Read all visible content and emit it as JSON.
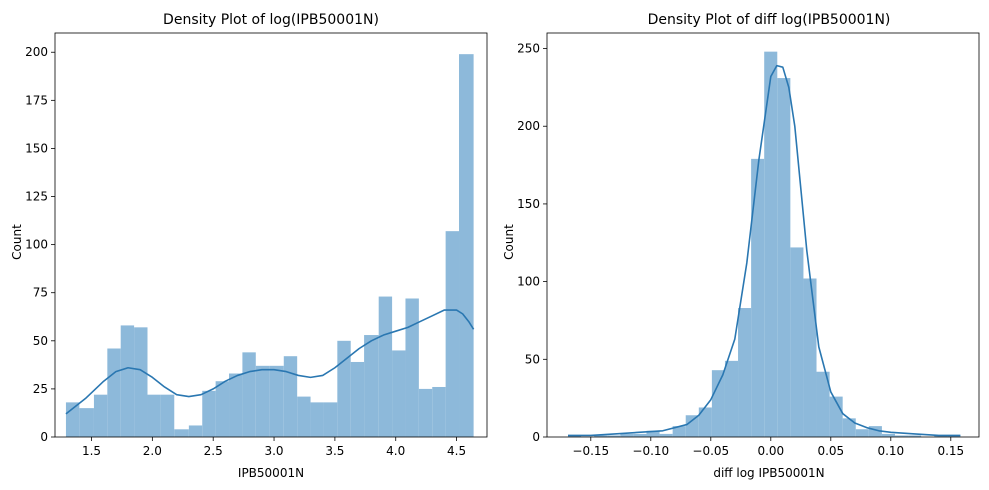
{
  "chart_data": [
    {
      "type": "histogram",
      "title": "Density Plot of log(IPB50001N)",
      "xlabel": "IPB50001N",
      "ylabel": "Count",
      "xlim": [
        1.2,
        4.75
      ],
      "ylim": [
        0,
        210
      ],
      "xticks": [
        1.5,
        2.0,
        2.5,
        3.0,
        3.5,
        4.0,
        4.5
      ],
      "xtick_labels": [
        "1.5",
        "2.0",
        "2.5",
        "3.0",
        "3.5",
        "4.0",
        "4.5"
      ],
      "yticks": [
        0,
        25,
        50,
        75,
        100,
        125,
        150,
        175,
        200
      ],
      "ytick_labels": [
        "0",
        "25",
        "50",
        "75",
        "100",
        "125",
        "150",
        "175",
        "200"
      ],
      "bin_edges": [
        1.29,
        1.4,
        1.52,
        1.63,
        1.74,
        1.85,
        1.96,
        2.07,
        2.18,
        2.3,
        2.41,
        2.52,
        2.63,
        2.74,
        2.85,
        2.96,
        3.08,
        3.19,
        3.3,
        3.41,
        3.52,
        3.63,
        3.74,
        3.86,
        3.97,
        4.08,
        4.19,
        4.3,
        4.41,
        4.52,
        4.64
      ],
      "counts": [
        18,
        15,
        22,
        46,
        58,
        57,
        22,
        22,
        4,
        6,
        24,
        29,
        33,
        44,
        37,
        37,
        42,
        21,
        18,
        18,
        50,
        39,
        53,
        73,
        45,
        72,
        25,
        26,
        107,
        199
      ],
      "kde": {
        "x": [
          1.29,
          1.45,
          1.6,
          1.7,
          1.8,
          1.9,
          2.0,
          2.1,
          2.2,
          2.3,
          2.4,
          2.5,
          2.6,
          2.7,
          2.8,
          2.9,
          3.0,
          3.1,
          3.2,
          3.3,
          3.4,
          3.5,
          3.6,
          3.7,
          3.8,
          3.9,
          4.0,
          4.1,
          4.2,
          4.3,
          4.4,
          4.5,
          4.55,
          4.6,
          4.64
        ],
        "y": [
          12,
          20,
          29,
          34,
          36,
          35,
          31,
          26,
          22,
          21,
          22,
          25,
          29,
          32,
          34,
          35,
          35,
          34,
          32,
          31,
          32,
          36,
          41,
          46,
          50,
          53,
          55,
          57,
          60,
          63,
          66,
          66,
          64,
          60,
          56
        ]
      },
      "bar_color": "#8db9da",
      "line_color": "#2a77b1",
      "grid": false
    },
    {
      "type": "histogram",
      "title": "Density Plot of diff log(IPB50001N)",
      "xlabel": "diff log IPB50001N",
      "ylabel": "Count",
      "xlim": [
        -0.1865,
        0.1735
      ],
      "ylim": [
        0,
        260
      ],
      "xticks": [
        -0.15,
        -0.1,
        -0.05,
        0.0,
        0.05,
        0.1,
        0.15
      ],
      "xtick_labels": [
        "−0.15",
        "−0.10",
        "−0.05",
        "0.00",
        "0.05",
        "0.10",
        "0.15"
      ],
      "yticks": [
        0,
        50,
        100,
        150,
        200,
        250
      ],
      "ytick_labels": [
        "0",
        "50",
        "100",
        "150",
        "200",
        "250"
      ],
      "bin_edges": [
        -0.169,
        -0.1581,
        -0.1472,
        -0.1363,
        -0.1254,
        -0.1145,
        -0.1036,
        -0.0927,
        -0.0818,
        -0.0709,
        -0.06,
        -0.0491,
        -0.0382,
        -0.0273,
        -0.0164,
        -0.0055,
        0.0054,
        0.0163,
        0.0272,
        0.0381,
        0.049,
        0.0599,
        0.0708,
        0.0817,
        0.0926,
        0.1035,
        0.1144,
        0.1253,
        0.1362,
        0.1471,
        0.158
      ],
      "counts": [
        1,
        0,
        1,
        1,
        2,
        2,
        4,
        2,
        7,
        14,
        19,
        43,
        49,
        83,
        179,
        248,
        231,
        122,
        102,
        42,
        26,
        12,
        5,
        7,
        2,
        1,
        1,
        0,
        1,
        1
      ],
      "kde": {
        "x": [
          -0.169,
          -0.15,
          -0.13,
          -0.11,
          -0.09,
          -0.07,
          -0.06,
          -0.05,
          -0.04,
          -0.03,
          -0.02,
          -0.01,
          0.0,
          0.005,
          0.01,
          0.015,
          0.02,
          0.03,
          0.04,
          0.05,
          0.06,
          0.07,
          0.08,
          0.09,
          0.1,
          0.12,
          0.14,
          0.158
        ],
        "y": [
          1,
          1,
          2,
          3,
          4,
          8,
          14,
          24,
          40,
          63,
          112,
          178,
          232,
          239,
          238,
          225,
          200,
          120,
          58,
          29,
          15,
          9,
          6,
          4,
          3,
          2,
          1,
          1
        ]
      },
      "bar_color": "#8db9da",
      "line_color": "#2a77b1",
      "grid": false
    }
  ]
}
